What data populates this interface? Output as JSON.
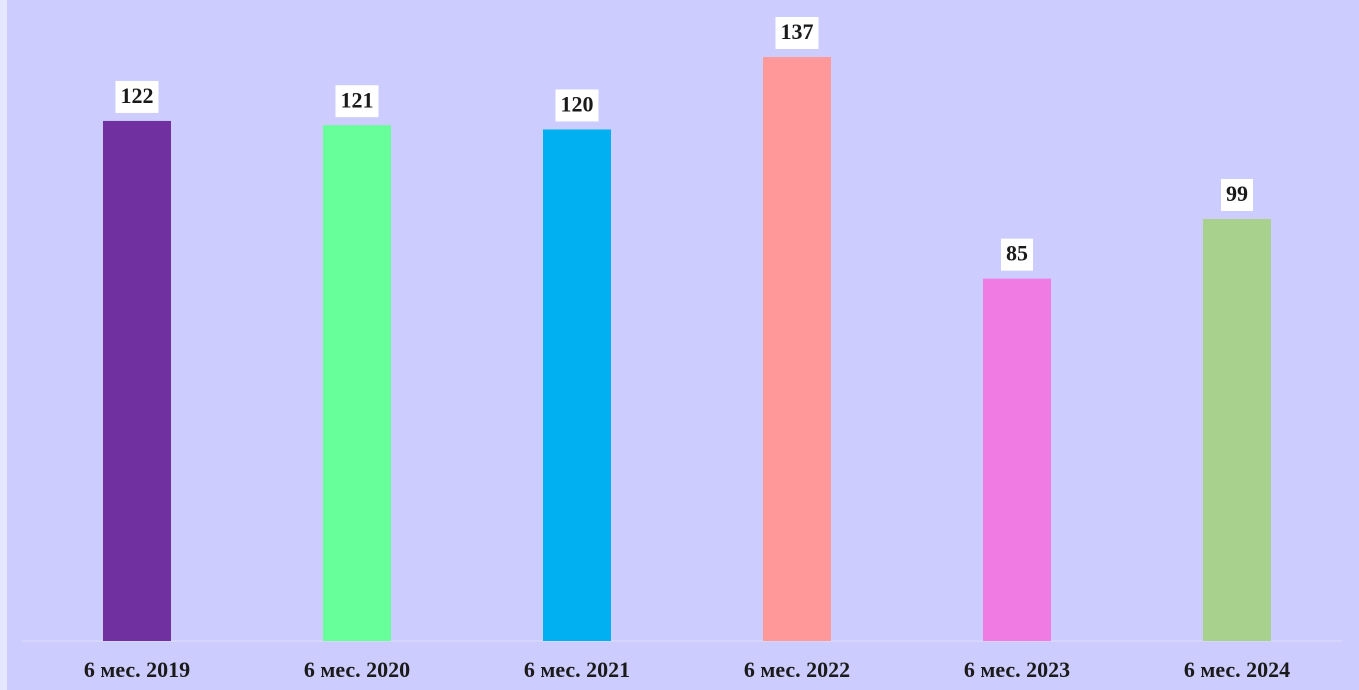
{
  "chart_data": {
    "type": "bar",
    "categories": [
      "6 мес. 2019",
      "6 мес. 2020",
      "6 мес. 2021",
      "6 мес. 2022",
      "6 мес. 2023",
      "6 мес. 2024"
    ],
    "values": [
      122,
      121,
      120,
      137,
      85,
      99
    ],
    "colors": [
      "#7030a0",
      "#66ff99",
      "#00b0f0",
      "#ff9999",
      "#ef7be3",
      "#a9d18e"
    ]
  }
}
